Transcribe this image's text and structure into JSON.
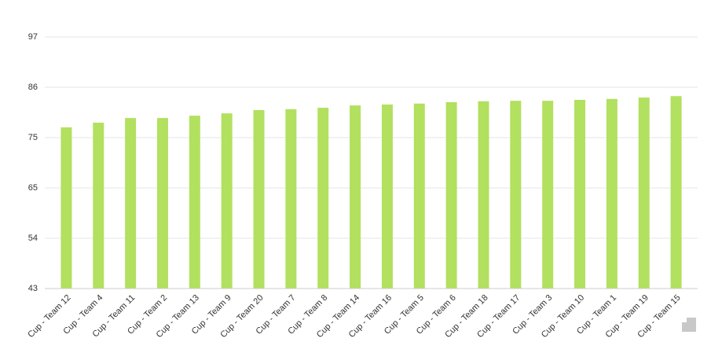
{
  "chart_data": {
    "type": "bar",
    "categories": [
      "Cup - Team 12",
      "Cup - Team 4",
      "Cup - Team 11",
      "Cup - Team 2",
      "Cup - Team 13",
      "Cup - Team 9",
      "Cup - Team 20",
      "Cup - Team 7",
      "Cup - Team 8",
      "Cup - Team 14",
      "Cup - Team 16",
      "Cup - Team 5",
      "Cup - Team 6",
      "Cup - Team 18",
      "Cup - Team 17",
      "Cup - Team 3",
      "Cup - Team 10",
      "Cup - Team 1",
      "Cup - Team 19",
      "Cup - Team 15"
    ],
    "values": [
      77.6,
      78.6,
      79.6,
      79.6,
      80.1,
      80.6,
      81.3,
      81.5,
      81.8,
      82.3,
      82.5,
      82.7,
      83.0,
      83.2,
      83.3,
      83.3,
      83.5,
      83.7,
      84.0,
      84.3
    ],
    "color": "#b2e05f",
    "ylim": [
      43,
      97
    ],
    "yticks": [
      43,
      {
        "value": 53.8,
        "label": "54"
      },
      {
        "value": 64.6,
        "label": "65"
      },
      {
        "value": 75.4,
        "label": "75"
      },
      {
        "value": 86.2,
        "label": "86"
      },
      97
    ],
    "grid": true
  }
}
